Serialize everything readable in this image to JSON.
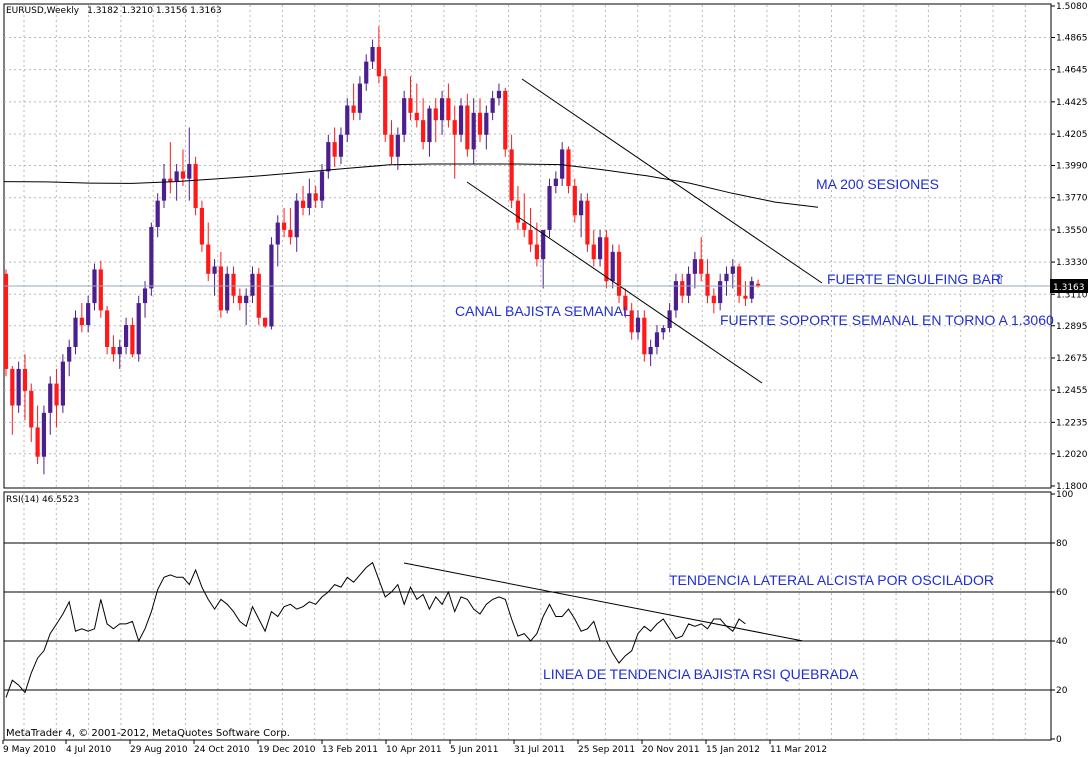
{
  "header": {
    "title": "EURUSD,Weekly",
    "ohlc": "1.3182 1.3210 1.3156 1.3163"
  },
  "rsi_header": {
    "title": "RSI(14) 46.5523"
  },
  "footer": {
    "copyright": "MetaTrader 4, © 2001-2012, MetaQuotes Software Corp."
  },
  "current_price_label": "1.3163",
  "annotations": {
    "ma200": "MA 200 SESIONES",
    "engulfing": "FUERTE ENGULFING BAR",
    "engulfing_arrow": "⇧",
    "support": "FUERTE SOPORTE SEMANAL EN TORNO A 1.3060",
    "channel": "CANAL BAJISTA SEMANAL",
    "rsi_lateral": "TENDENCIA LATERAL ALCISTA POR OSCILADOR",
    "rsi_break": "LINEA DE TENDENCIA BAJISTA RSI QUEBRADA"
  },
  "colors": {
    "bull": "#4b1f8e",
    "bear": "#ff1a1a",
    "grid": "#b8b8b8",
    "axis": "#000000",
    "annotation": "#1f2fd0",
    "line": "#000000"
  },
  "chart_data": [
    {
      "type": "candlestick",
      "symbol": "EURUSD",
      "timeframe": "Weekly",
      "x_labels": [
        "9 May 2010",
        "4 Jul 2010",
        "29 Aug 2010",
        "24 Oct 2010",
        "19 Dec 2010",
        "13 Feb 2011",
        "10 Apr 2011",
        "5 Jun 2011",
        "31 Jul 2011",
        "25 Sep 2011",
        "20 Nov 2011",
        "15 Jan 2012",
        "11 Mar 2012"
      ],
      "y_ticks": [
        1.18,
        1.202,
        1.2235,
        1.2455,
        1.2675,
        1.2895,
        1.311,
        1.333,
        1.355,
        1.377,
        1.399,
        1.4205,
        1.4425,
        1.4645,
        1.4865,
        1.508
      ],
      "ylim": [
        1.18,
        1.508
      ],
      "current_price": 1.3163,
      "grid": true,
      "series_ohlc": [
        [
          1.325,
          1.328,
          1.255,
          1.26
        ],
        [
          1.26,
          1.262,
          1.215,
          1.235
        ],
        [
          1.235,
          1.265,
          1.23,
          1.26
        ],
        [
          1.26,
          1.27,
          1.225,
          1.245
        ],
        [
          1.245,
          1.25,
          1.21,
          1.22
        ],
        [
          1.22,
          1.235,
          1.195,
          1.2
        ],
        [
          1.2,
          1.235,
          1.188,
          1.23
        ],
        [
          1.23,
          1.255,
          1.215,
          1.25
        ],
        [
          1.25,
          1.26,
          1.22,
          1.235
        ],
        [
          1.235,
          1.27,
          1.23,
          1.265
        ],
        [
          1.265,
          1.28,
          1.255,
          1.275
        ],
        [
          1.275,
          1.3,
          1.27,
          1.295
        ],
        [
          1.295,
          1.305,
          1.285,
          1.29
        ],
        [
          1.29,
          1.31,
          1.285,
          1.305
        ],
        [
          1.305,
          1.332,
          1.3,
          1.328
        ],
        [
          1.328,
          1.334,
          1.295,
          1.3
        ],
        [
          1.3,
          1.303,
          1.27,
          1.275
        ],
        [
          1.275,
          1.283,
          1.265,
          1.27
        ],
        [
          1.27,
          1.28,
          1.26,
          1.275
        ],
        [
          1.275,
          1.295,
          1.27,
          1.29
        ],
        [
          1.29,
          1.295,
          1.268,
          1.27
        ],
        [
          1.27,
          1.31,
          1.265,
          1.305
        ],
        [
          1.305,
          1.32,
          1.295,
          1.315
        ],
        [
          1.315,
          1.36,
          1.31,
          1.357
        ],
        [
          1.357,
          1.38,
          1.35,
          1.375
        ],
        [
          1.375,
          1.4,
          1.37,
          1.39
        ],
        [
          1.39,
          1.415,
          1.38,
          1.388
        ],
        [
          1.388,
          1.4,
          1.375,
          1.395
        ],
        [
          1.395,
          1.41,
          1.385,
          1.39
        ],
        [
          1.39,
          1.425,
          1.375,
          1.4
        ],
        [
          1.4,
          1.405,
          1.365,
          1.37
        ],
        [
          1.37,
          1.375,
          1.34,
          1.345
        ],
        [
          1.345,
          1.36,
          1.32,
          1.325
        ],
        [
          1.325,
          1.335,
          1.31,
          1.33
        ],
        [
          1.33,
          1.34,
          1.295,
          1.3
        ],
        [
          1.3,
          1.33,
          1.298,
          1.325
        ],
        [
          1.325,
          1.33,
          1.305,
          1.31
        ],
        [
          1.31,
          1.315,
          1.3,
          1.305
        ],
        [
          1.305,
          1.315,
          1.29,
          1.31
        ],
        [
          1.31,
          1.33,
          1.305,
          1.325
        ],
        [
          1.325,
          1.329,
          1.29,
          1.295
        ],
        [
          1.295,
          1.295,
          1.288,
          1.289
        ],
        [
          1.289,
          1.35,
          1.287,
          1.345
        ],
        [
          1.345,
          1.365,
          1.33,
          1.36
        ],
        [
          1.36,
          1.37,
          1.35,
          1.355
        ],
        [
          1.355,
          1.37,
          1.345,
          1.35
        ],
        [
          1.35,
          1.38,
          1.34,
          1.375
        ],
        [
          1.375,
          1.385,
          1.365,
          1.37
        ],
        [
          1.37,
          1.39,
          1.365,
          1.38
        ],
        [
          1.38,
          1.385,
          1.37,
          1.375
        ],
        [
          1.375,
          1.4,
          1.37,
          1.395
        ],
        [
          1.395,
          1.42,
          1.39,
          1.415
        ],
        [
          1.415,
          1.425,
          1.398,
          1.405
        ],
        [
          1.405,
          1.425,
          1.4,
          1.42
        ],
        [
          1.42,
          1.445,
          1.415,
          1.44
        ],
        [
          1.44,
          1.455,
          1.43,
          1.435
        ],
        [
          1.435,
          1.46,
          1.43,
          1.455
        ],
        [
          1.455,
          1.475,
          1.45,
          1.47
        ],
        [
          1.47,
          1.485,
          1.465,
          1.48
        ],
        [
          1.48,
          1.494,
          1.455,
          1.46
        ],
        [
          1.46,
          1.465,
          1.415,
          1.42
        ],
        [
          1.42,
          1.43,
          1.4,
          1.405
        ],
        [
          1.405,
          1.425,
          1.396,
          1.42
        ],
        [
          1.42,
          1.45,
          1.415,
          1.445
        ],
        [
          1.445,
          1.46,
          1.43,
          1.435
        ],
        [
          1.435,
          1.455,
          1.425,
          1.43
        ],
        [
          1.43,
          1.445,
          1.41,
          1.415
        ],
        [
          1.415,
          1.44,
          1.405,
          1.438
        ],
        [
          1.438,
          1.445,
          1.415,
          1.43
        ],
        [
          1.43,
          1.45,
          1.42,
          1.445
        ],
        [
          1.445,
          1.455,
          1.425,
          1.43
        ],
        [
          1.43,
          1.44,
          1.39,
          1.42
        ],
        [
          1.42,
          1.445,
          1.415,
          1.44
        ],
        [
          1.44,
          1.448,
          1.405,
          1.41
        ],
        [
          1.41,
          1.445,
          1.4,
          1.435
        ],
        [
          1.435,
          1.445,
          1.415,
          1.42
        ],
        [
          1.42,
          1.44,
          1.41,
          1.435
        ],
        [
          1.435,
          1.45,
          1.43,
          1.445
        ],
        [
          1.445,
          1.455,
          1.44,
          1.45
        ],
        [
          1.45,
          1.452,
          1.405,
          1.41
        ],
        [
          1.41,
          1.42,
          1.37,
          1.375
        ],
        [
          1.375,
          1.385,
          1.355,
          1.36
        ],
        [
          1.36,
          1.38,
          1.35,
          1.355
        ],
        [
          1.355,
          1.37,
          1.34,
          1.345
        ],
        [
          1.345,
          1.36,
          1.33,
          1.335
        ],
        [
          1.335,
          1.35,
          1.315,
          1.355
        ],
        [
          1.355,
          1.39,
          1.35,
          1.385
        ],
        [
          1.385,
          1.395,
          1.38,
          1.39
        ],
        [
          1.39,
          1.415,
          1.385,
          1.41
        ],
        [
          1.41,
          1.412,
          1.38,
          1.385
        ],
        [
          1.385,
          1.39,
          1.36,
          1.365
        ],
        [
          1.365,
          1.38,
          1.35,
          1.375
        ],
        [
          1.375,
          1.38,
          1.34,
          1.345
        ],
        [
          1.345,
          1.355,
          1.33,
          1.335
        ],
        [
          1.335,
          1.355,
          1.33,
          1.35
        ],
        [
          1.35,
          1.355,
          1.315,
          1.32
        ],
        [
          1.32,
          1.345,
          1.315,
          1.34
        ],
        [
          1.34,
          1.345,
          1.305,
          1.31
        ],
        [
          1.31,
          1.315,
          1.295,
          1.3
        ],
        [
          1.3,
          1.305,
          1.28,
          1.285
        ],
        [
          1.285,
          1.3,
          1.28,
          1.295
        ],
        [
          1.295,
          1.3,
          1.265,
          1.27
        ],
        [
          1.27,
          1.28,
          1.262,
          1.275
        ],
        [
          1.275,
          1.29,
          1.27,
          1.285
        ],
        [
          1.285,
          1.29,
          1.28,
          1.288
        ],
        [
          1.288,
          1.305,
          1.285,
          1.3
        ],
        [
          1.3,
          1.325,
          1.295,
          1.32
        ],
        [
          1.32,
          1.325,
          1.305,
          1.31
        ],
        [
          1.31,
          1.33,
          1.305,
          1.325
        ],
        [
          1.325,
          1.34,
          1.315,
          1.335
        ],
        [
          1.335,
          1.35,
          1.32,
          1.325
        ],
        [
          1.325,
          1.335,
          1.305,
          1.31
        ],
        [
          1.31,
          1.315,
          1.298,
          1.305
        ],
        [
          1.305,
          1.325,
          1.3,
          1.32
        ],
        [
          1.32,
          1.33,
          1.31,
          1.325
        ],
        [
          1.325,
          1.335,
          1.315,
          1.33
        ],
        [
          1.33,
          1.332,
          1.305,
          1.31
        ],
        [
          1.31,
          1.32,
          1.303,
          1.308
        ],
        [
          1.308,
          1.323,
          1.305,
          1.32
        ],
        [
          1.3182,
          1.321,
          1.3156,
          1.3163
        ]
      ],
      "ma200": [
        1.388,
        1.3878,
        1.387,
        1.3868,
        1.388,
        1.39,
        1.392,
        1.3945,
        1.397,
        1.3995,
        1.4,
        1.4,
        1.4,
        1.3996,
        1.396,
        1.392,
        1.387,
        1.38,
        1.374,
        1.3705
      ],
      "channel_upper": [
        [
          1.4565,
          1.329
        ]
      ],
      "channel_lower": [
        [
          1.39,
          1.252
        ]
      ]
    },
    {
      "type": "line",
      "name": "RSI(14) 46.5523",
      "ylim": [
        0,
        100
      ],
      "y_ticks": [
        0,
        20,
        40,
        60,
        80,
        100
      ],
      "levels": [
        20,
        40,
        60,
        80
      ],
      "values": [
        17,
        24,
        22,
        19,
        27,
        33,
        36,
        43,
        47,
        51,
        56,
        44,
        45,
        44,
        45,
        57,
        47,
        45,
        47,
        47,
        48,
        40,
        45,
        52,
        61,
        66,
        67,
        66,
        66,
        63,
        69,
        62,
        57,
        53,
        57,
        55,
        52,
        48,
        46,
        54,
        49,
        44,
        52,
        50,
        54,
        55,
        53,
        54,
        56,
        55,
        58,
        60,
        63,
        62,
        66,
        64,
        67,
        70,
        72,
        65,
        58,
        60,
        63,
        55,
        62,
        57,
        59,
        53,
        58,
        55,
        60,
        52,
        58,
        57,
        53,
        51,
        55,
        57,
        58,
        57,
        49,
        42,
        43,
        40,
        43,
        50,
        55,
        50,
        50,
        53,
        49,
        44,
        45,
        48,
        40,
        40,
        35,
        31,
        34,
        36,
        43,
        46,
        44,
        47,
        49,
        45,
        41,
        42,
        47,
        46,
        47,
        45,
        49,
        49,
        46,
        44,
        49,
        47
      ],
      "trendline_from_to": [
        70,
        40
      ]
    }
  ]
}
